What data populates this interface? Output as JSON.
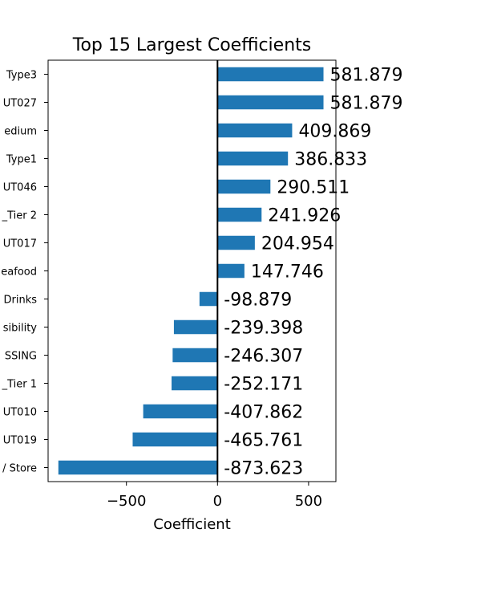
{
  "chart_data": {
    "type": "bar",
    "orientation": "horizontal",
    "title": "Top 15 Largest Coefficients",
    "xlabel": "Coefficient",
    "ylabel": "",
    "xlim": [
      -930,
      650
    ],
    "xticks": [
      {
        "value": -500,
        "label": "−500"
      },
      {
        "value": 0,
        "label": "0"
      },
      {
        "value": 500,
        "label": "500"
      }
    ],
    "categories": [
      "Type3",
      "UT027",
      "edium",
      "Type1",
      "UT046",
      "_Tier 2",
      "UT017",
      "eafood",
      "Drinks",
      "sibility",
      "SSING",
      "_Tier 1",
      "UT010",
      "UT019",
      "/ Store"
    ],
    "values": [
      581.879,
      581.879,
      409.869,
      386.833,
      290.511,
      241.926,
      204.954,
      147.746,
      -98.879,
      -239.398,
      -246.307,
      -252.171,
      -407.862,
      -465.761,
      -873.623
    ],
    "data_labels": [
      "581.879",
      "581.879",
      "409.869",
      "386.833",
      "290.511",
      "241.926",
      "204.954",
      "147.746",
      "-98.879",
      "-239.398",
      "-246.307",
      "-252.171",
      "-407.862",
      "-465.761",
      "-873.623"
    ],
    "bar_color": "#1f77b4",
    "zero_line": true,
    "grid": false,
    "legend": false
  }
}
